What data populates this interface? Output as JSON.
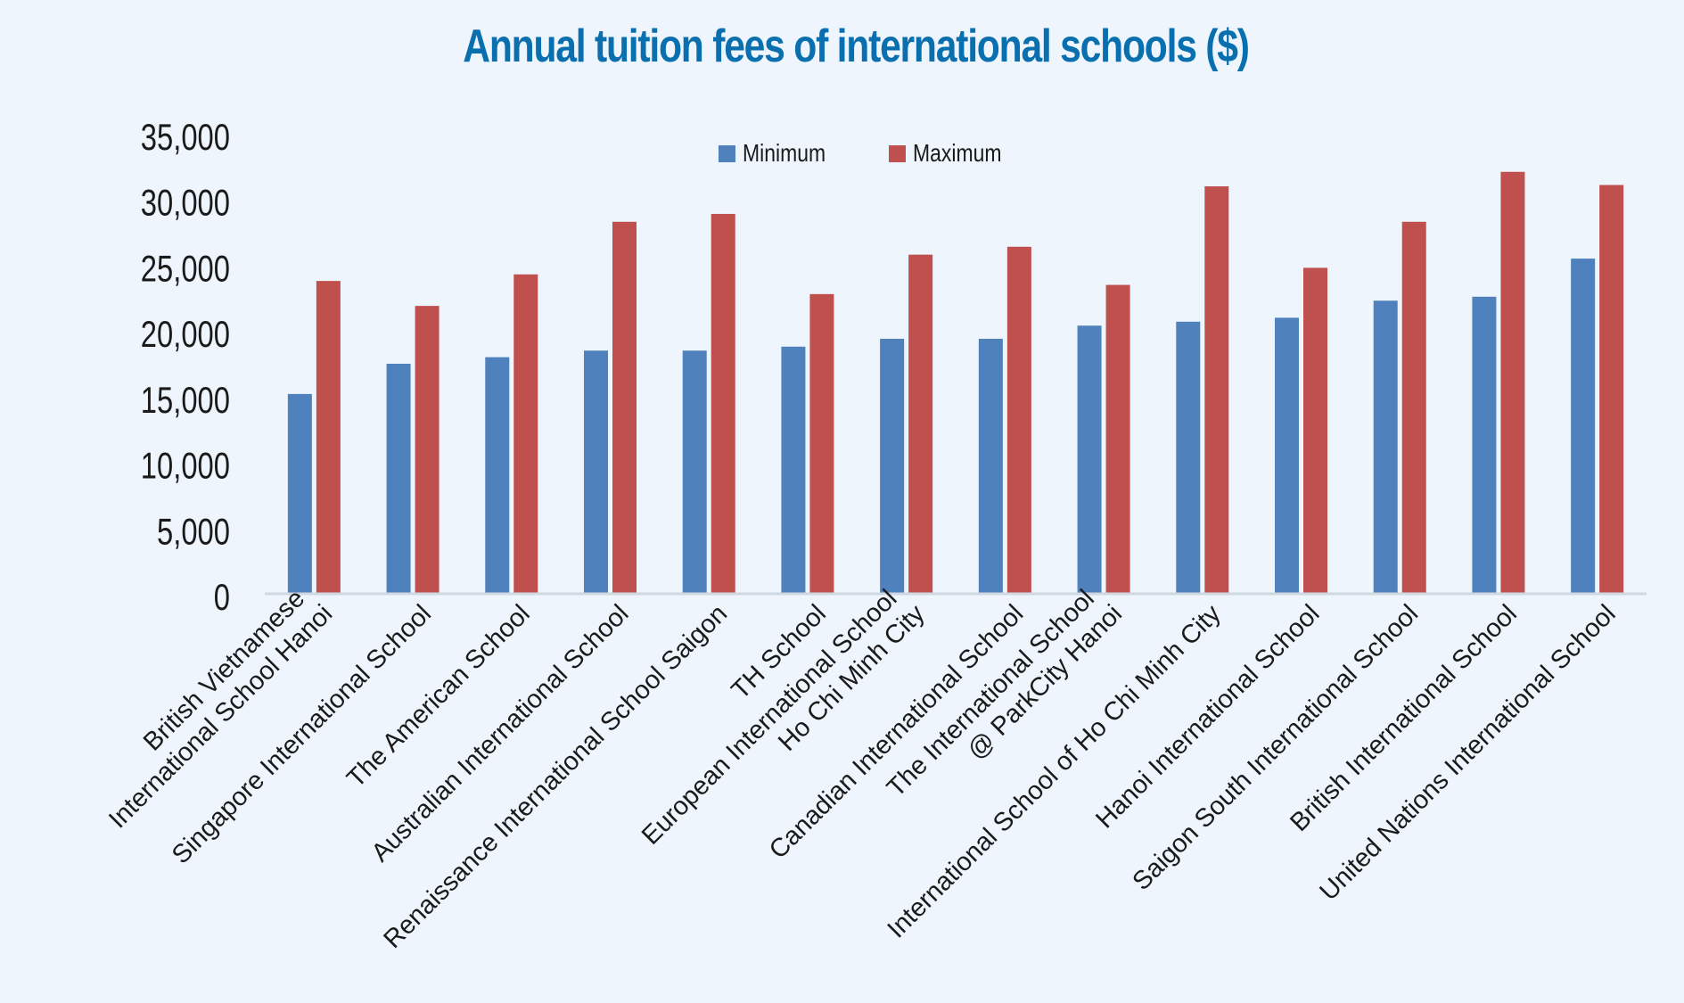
{
  "chart_data": {
    "type": "bar",
    "title": "Annual tuition fees of international schools ($)",
    "xlabel": "",
    "ylabel": "",
    "ylim": [
      0,
      35000
    ],
    "yticks": [
      0,
      5000,
      10000,
      15000,
      20000,
      25000,
      30000,
      35000
    ],
    "ytick_labels": [
      "0",
      "5,000",
      "10,000",
      "15,000",
      "20,000",
      "25,000",
      "30,000",
      "35,000"
    ],
    "grid": false,
    "legend_position": "top-center",
    "categories": [
      [
        "British Vietnamese",
        "International School Hanoi"
      ],
      [
        "Singapore International School"
      ],
      [
        "The American School"
      ],
      [
        "Australian International School"
      ],
      [
        "Renaissance International School Saigon"
      ],
      [
        "TH School"
      ],
      [
        "European International School",
        "Ho Chi Minh City"
      ],
      [
        "Canadian International School"
      ],
      [
        "The International School",
        "@ ParkCity  Hanoi"
      ],
      [
        "International School of Ho Chi Minh City"
      ],
      [
        "Hanoi International School"
      ],
      [
        "Saigon South International School"
      ],
      [
        "British International School"
      ],
      [
        "United Nations International School"
      ]
    ],
    "series": [
      {
        "name": "Minimum",
        "color": "#4f81bd",
        "values": [
          15200,
          17500,
          18000,
          18500,
          18500,
          18800,
          19400,
          19400,
          20400,
          20700,
          21000,
          22300,
          22600,
          25500
        ]
      },
      {
        "name": "Maximum",
        "color": "#c0504d",
        "values": [
          23800,
          21900,
          24300,
          28300,
          28900,
          22800,
          25800,
          26400,
          23500,
          31000,
          24800,
          28300,
          32100,
          31100
        ]
      }
    ]
  }
}
